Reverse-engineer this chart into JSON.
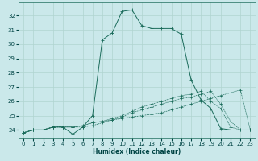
{
  "xlabel": "Humidex (Indice chaleur)",
  "bg_color": "#cae8ea",
  "grid_color": "#b0d4d0",
  "line_color": "#1a6b5a",
  "xlim": [
    -0.5,
    23.5
  ],
  "ylim": [
    23.4,
    32.9
  ],
  "xticks": [
    0,
    1,
    2,
    3,
    4,
    5,
    6,
    7,
    8,
    9,
    10,
    11,
    12,
    13,
    14,
    15,
    16,
    17,
    18,
    19,
    20,
    21,
    22,
    23
  ],
  "yticks": [
    24,
    25,
    26,
    27,
    28,
    29,
    30,
    31,
    32
  ],
  "s0_x": [
    0,
    1,
    2,
    3,
    4,
    5,
    6,
    7,
    8,
    9,
    10,
    11,
    12,
    13,
    14,
    15,
    16,
    17,
    18,
    19,
    20,
    21
  ],
  "s0_y": [
    23.8,
    24.0,
    24.0,
    24.2,
    24.2,
    23.7,
    24.2,
    25.0,
    30.3,
    30.8,
    32.3,
    32.4,
    31.3,
    31.1,
    31.1,
    31.1,
    30.7,
    27.5,
    26.1,
    25.5,
    24.1,
    24.0
  ],
  "s1_x": [
    0,
    1,
    2,
    3,
    4,
    5,
    6,
    7,
    8,
    9,
    10,
    11,
    12,
    13,
    14,
    15,
    16,
    17,
    18,
    19,
    20,
    21,
    22,
    23
  ],
  "s1_y": [
    23.8,
    24.0,
    24.0,
    24.2,
    24.2,
    24.2,
    24.3,
    24.5,
    24.6,
    24.7,
    24.8,
    24.9,
    25.0,
    25.1,
    25.2,
    25.4,
    25.6,
    25.8,
    26.0,
    26.2,
    26.4,
    26.6,
    26.8,
    24.0
  ],
  "s2_x": [
    0,
    1,
    2,
    3,
    4,
    5,
    6,
    7,
    8,
    9,
    10,
    11,
    12,
    13,
    14,
    15,
    16,
    17,
    18,
    19,
    20,
    21,
    22,
    23
  ],
  "s2_y": [
    23.8,
    24.0,
    24.0,
    24.2,
    24.2,
    24.2,
    24.3,
    24.5,
    24.6,
    24.8,
    25.0,
    25.3,
    25.6,
    25.8,
    26.0,
    26.2,
    26.4,
    26.5,
    26.7,
    26.0,
    25.5,
    24.2,
    24.0,
    24.0
  ],
  "s3_x": [
    0,
    1,
    2,
    3,
    4,
    5,
    6,
    7,
    8,
    9,
    10,
    11,
    12,
    13,
    14,
    15,
    16,
    17,
    18,
    19,
    20,
    21,
    22,
    23
  ],
  "s3_y": [
    23.8,
    24.0,
    24.0,
    24.2,
    24.2,
    24.2,
    24.2,
    24.3,
    24.5,
    24.7,
    24.9,
    25.2,
    25.4,
    25.6,
    25.8,
    26.0,
    26.2,
    26.3,
    26.5,
    26.7,
    25.8,
    24.6,
    24.0,
    24.0
  ],
  "markersize": 2.5,
  "linewidth": 0.7,
  "font_color": "#004444",
  "xlabel_fontsize": 5.5,
  "tick_fontsize": 5.0
}
